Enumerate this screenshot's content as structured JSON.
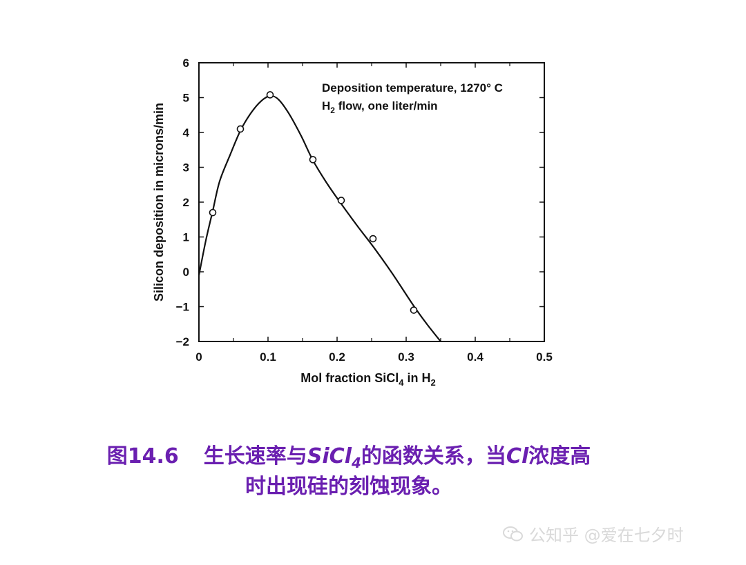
{
  "chart_data": {
    "type": "scatter",
    "xlabel_main": "Mol fraction SiCl",
    "xlabel_sub": "4",
    "xlabel_mid": " in H",
    "xlabel_sub2": "2",
    "ylabel": "Silicon deposition in microns/min",
    "xlim": [
      0,
      0.5
    ],
    "ylim": [
      -2,
      6
    ],
    "x_ticks": [
      "0",
      "0.1",
      "0.2",
      "0.3",
      "0.4",
      "0.5"
    ],
    "y_ticks": [
      "6",
      "5",
      "4",
      "3",
      "2",
      "1",
      "0",
      "−1",
      "−2"
    ],
    "annotation_line1": "Deposition temperature, 1270° C",
    "annotation_line2_prefix": "H",
    "annotation_line2_sub": "2",
    "annotation_line2_rest": " flow, one liter/min",
    "grid": false,
    "points": [
      {
        "x": 0.02,
        "y": 1.7
      },
      {
        "x": 0.06,
        "y": 4.1
      },
      {
        "x": 0.103,
        "y": 5.08
      },
      {
        "x": 0.165,
        "y": 3.22
      },
      {
        "x": 0.206,
        "y": 2.05
      },
      {
        "x": 0.252,
        "y": 0.95
      },
      {
        "x": 0.311,
        "y": -1.1
      }
    ],
    "curve": [
      {
        "x": 0.0,
        "y": -0.1
      },
      {
        "x": 0.01,
        "y": 0.9
      },
      {
        "x": 0.02,
        "y": 1.75
      },
      {
        "x": 0.03,
        "y": 2.6
      },
      {
        "x": 0.045,
        "y": 3.35
      },
      {
        "x": 0.06,
        "y": 4.05
      },
      {
        "x": 0.075,
        "y": 4.55
      },
      {
        "x": 0.09,
        "y": 4.9
      },
      {
        "x": 0.103,
        "y": 5.05
      },
      {
        "x": 0.115,
        "y": 4.95
      },
      {
        "x": 0.13,
        "y": 4.55
      },
      {
        "x": 0.148,
        "y": 3.9
      },
      {
        "x": 0.165,
        "y": 3.2
      },
      {
        "x": 0.185,
        "y": 2.55
      },
      {
        "x": 0.206,
        "y": 1.95
      },
      {
        "x": 0.23,
        "y": 1.3
      },
      {
        "x": 0.255,
        "y": 0.65
      },
      {
        "x": 0.28,
        "y": -0.05
      },
      {
        "x": 0.31,
        "y": -0.95
      },
      {
        "x": 0.33,
        "y": -1.5
      },
      {
        "x": 0.35,
        "y": -2.0
      }
    ]
  },
  "caption": {
    "fig_no": "图14.6",
    "line1_a": "生长速率与",
    "line1_b": "SiCl",
    "line1_b_sub": "4",
    "line1_c": "的函数关系，当",
    "line1_d": "Cl",
    "line1_e": "浓度高",
    "line2": "时出现硅的刻蚀现象。"
  },
  "watermark": {
    "text": "公知乎 @爱在七夕时",
    "icon": "wechat-icon"
  }
}
